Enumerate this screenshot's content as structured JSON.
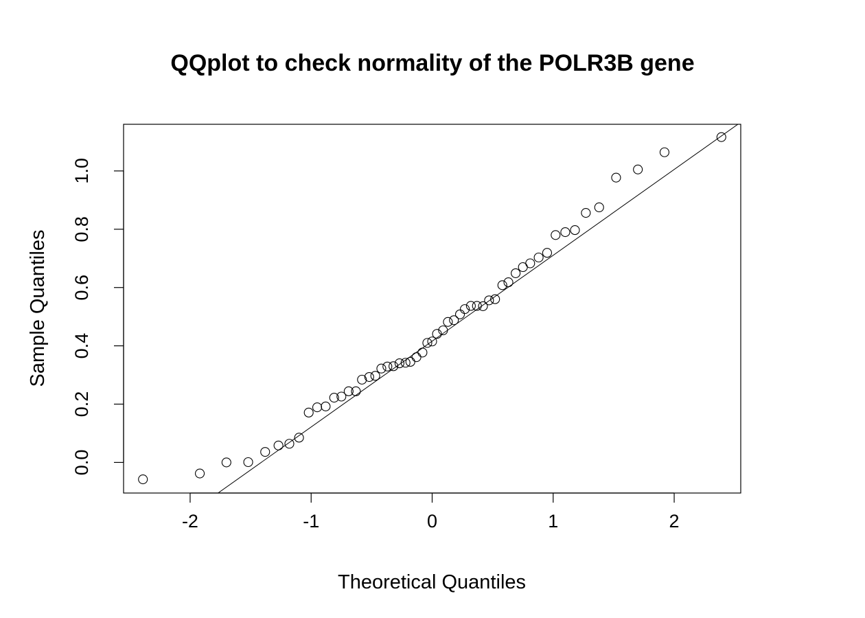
{
  "chart_data": {
    "type": "scatter",
    "title": "QQplot to check normality of the POLR3B gene",
    "xlabel": "Theoretical Quantiles",
    "ylabel": "Sample Quantiles",
    "xlim": [
      -2.55,
      2.55
    ],
    "ylim": [
      -0.105,
      1.16
    ],
    "x_ticks": [
      -2,
      -1,
      0,
      1,
      2
    ],
    "x_tick_labels": [
      "-2",
      "-1",
      "0",
      "1",
      "2"
    ],
    "y_ticks": [
      0.0,
      0.2,
      0.4,
      0.6,
      0.8,
      1.0
    ],
    "y_tick_labels": [
      "0.0",
      "0.2",
      "0.4",
      "0.6",
      "0.8",
      "1.0"
    ],
    "grid": false,
    "legend": "none",
    "point_style": "open-circle",
    "points": [
      {
        "x": -2.39,
        "y": -0.058
      },
      {
        "x": -1.92,
        "y": -0.038
      },
      {
        "x": -1.7,
        "y": 0.0
      },
      {
        "x": -1.52,
        "y": 0.001
      },
      {
        "x": -1.38,
        "y": 0.036
      },
      {
        "x": -1.27,
        "y": 0.058
      },
      {
        "x": -1.18,
        "y": 0.064
      },
      {
        "x": -1.1,
        "y": 0.085
      },
      {
        "x": -1.02,
        "y": 0.171
      },
      {
        "x": -0.95,
        "y": 0.189
      },
      {
        "x": -0.88,
        "y": 0.192
      },
      {
        "x": -0.81,
        "y": 0.222
      },
      {
        "x": -0.75,
        "y": 0.226
      },
      {
        "x": -0.69,
        "y": 0.244
      },
      {
        "x": -0.63,
        "y": 0.244
      },
      {
        "x": -0.58,
        "y": 0.284
      },
      {
        "x": -0.52,
        "y": 0.293
      },
      {
        "x": -0.47,
        "y": 0.297
      },
      {
        "x": -0.42,
        "y": 0.322
      },
      {
        "x": -0.37,
        "y": 0.329
      },
      {
        "x": -0.32,
        "y": 0.33
      },
      {
        "x": -0.27,
        "y": 0.34
      },
      {
        "x": -0.22,
        "y": 0.342
      },
      {
        "x": -0.18,
        "y": 0.345
      },
      {
        "x": -0.13,
        "y": 0.361
      },
      {
        "x": -0.08,
        "y": 0.377
      },
      {
        "x": -0.04,
        "y": 0.41
      },
      {
        "x": 0.0,
        "y": 0.415
      },
      {
        "x": 0.04,
        "y": 0.441
      },
      {
        "x": 0.09,
        "y": 0.453
      },
      {
        "x": 0.13,
        "y": 0.482
      },
      {
        "x": 0.18,
        "y": 0.488
      },
      {
        "x": 0.23,
        "y": 0.508
      },
      {
        "x": 0.27,
        "y": 0.526
      },
      {
        "x": 0.32,
        "y": 0.537
      },
      {
        "x": 0.37,
        "y": 0.537
      },
      {
        "x": 0.42,
        "y": 0.536
      },
      {
        "x": 0.47,
        "y": 0.556
      },
      {
        "x": 0.52,
        "y": 0.56
      },
      {
        "x": 0.58,
        "y": 0.608
      },
      {
        "x": 0.63,
        "y": 0.618
      },
      {
        "x": 0.69,
        "y": 0.649
      },
      {
        "x": 0.75,
        "y": 0.67
      },
      {
        "x": 0.81,
        "y": 0.683
      },
      {
        "x": 0.88,
        "y": 0.703
      },
      {
        "x": 0.95,
        "y": 0.719
      },
      {
        "x": 1.02,
        "y": 0.78
      },
      {
        "x": 1.1,
        "y": 0.79
      },
      {
        "x": 1.18,
        "y": 0.797
      },
      {
        "x": 1.27,
        "y": 0.856
      },
      {
        "x": 1.38,
        "y": 0.875
      },
      {
        "x": 1.52,
        "y": 0.977
      },
      {
        "x": 1.7,
        "y": 1.005
      },
      {
        "x": 1.92,
        "y": 1.064
      },
      {
        "x": 2.39,
        "y": 1.116
      }
    ],
    "reference_line": {
      "intercept": 0.416,
      "slope": 0.2945
    }
  }
}
